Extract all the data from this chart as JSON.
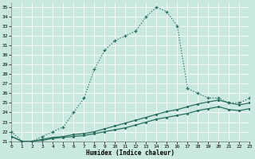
{
  "xlabel": "Humidex (Indice chaleur)",
  "xlim": [
    0,
    23
  ],
  "ylim": [
    21,
    35.5
  ],
  "yticks": [
    21,
    22,
    23,
    24,
    25,
    26,
    27,
    28,
    29,
    30,
    31,
    32,
    33,
    34,
    35
  ],
  "xticks": [
    0,
    1,
    2,
    3,
    4,
    5,
    6,
    7,
    8,
    9,
    10,
    11,
    12,
    13,
    14,
    15,
    16,
    17,
    18,
    19,
    20,
    21,
    22,
    23
  ],
  "bg_color": "#c8e8e0",
  "line_color": "#2a6e5e",
  "line1_x": [
    0,
    1,
    2,
    3,
    4,
    5,
    6,
    7,
    8,
    9,
    10,
    11,
    12,
    13,
    14,
    15,
    16,
    17,
    18,
    19,
    20,
    21,
    22,
    23
  ],
  "line1_y": [
    22.0,
    21.0,
    21.0,
    21.5,
    22.0,
    22.5,
    24.0,
    25.5,
    28.5,
    30.5,
    31.5,
    32.0,
    32.5,
    34.0,
    35.0,
    34.5,
    33.0,
    26.5,
    26.0,
    25.5,
    25.5,
    25.0,
    25.0,
    25.5
  ],
  "line2_x": [
    0,
    1,
    2,
    3,
    4,
    5,
    6,
    7,
    8,
    9,
    10,
    11,
    12,
    13,
    14,
    15,
    16,
    17,
    18,
    19,
    20,
    21,
    22,
    23
  ],
  "line2_y": [
    21.5,
    21.0,
    21.0,
    21.2,
    21.4,
    21.5,
    21.7,
    21.8,
    22.0,
    22.3,
    22.6,
    22.9,
    23.2,
    23.5,
    23.8,
    24.1,
    24.3,
    24.6,
    24.9,
    25.1,
    25.3,
    25.0,
    24.8,
    25.0
  ],
  "line3_x": [
    0,
    1,
    2,
    3,
    4,
    5,
    6,
    7,
    8,
    9,
    10,
    11,
    12,
    13,
    14,
    15,
    16,
    17,
    18,
    19,
    20,
    21,
    22,
    23
  ],
  "line3_y": [
    21.5,
    21.0,
    21.0,
    21.1,
    21.3,
    21.4,
    21.5,
    21.6,
    21.8,
    22.0,
    22.2,
    22.4,
    22.7,
    23.0,
    23.3,
    23.5,
    23.7,
    23.9,
    24.2,
    24.4,
    24.6,
    24.3,
    24.2,
    24.4
  ]
}
